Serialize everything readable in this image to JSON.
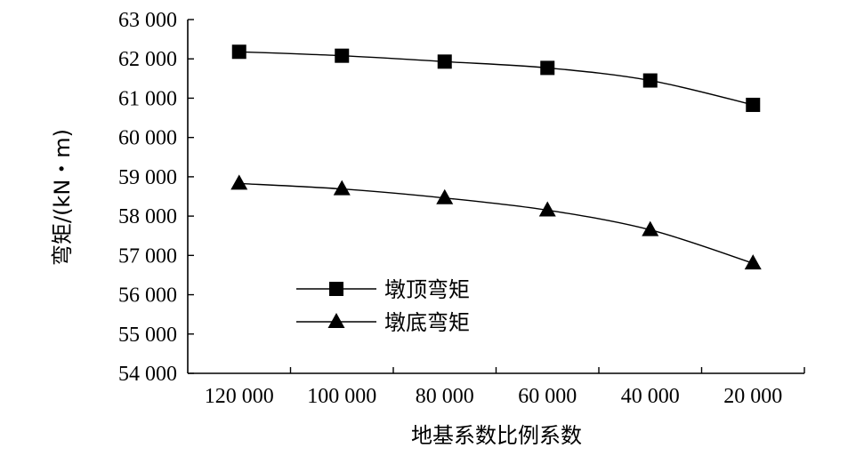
{
  "chart_data": {
    "type": "line",
    "xlabel": "地基系数比例系数",
    "ylabel": "弯矩/(kN・m)",
    "categories": [
      "120 000",
      "100 000",
      "80 000",
      "60 000",
      "40 000",
      "20 000"
    ],
    "y_tick_labels": [
      "54 000",
      "55 000",
      "56 000",
      "57 000",
      "58 000",
      "59 000",
      "60 000",
      "61 000",
      "62 000",
      "63 000"
    ],
    "ylim": [
      54000,
      63000
    ],
    "grid": false,
    "legend_position": "bottom-left",
    "series": [
      {
        "name": "墩顶弯矩",
        "marker": "square",
        "values": [
          62180,
          62080,
          61930,
          61770,
          61450,
          60830
        ]
      },
      {
        "name": "墩底弯矩",
        "marker": "triangle",
        "values": [
          58830,
          58690,
          58460,
          58150,
          57650,
          56800
        ]
      }
    ]
  }
}
